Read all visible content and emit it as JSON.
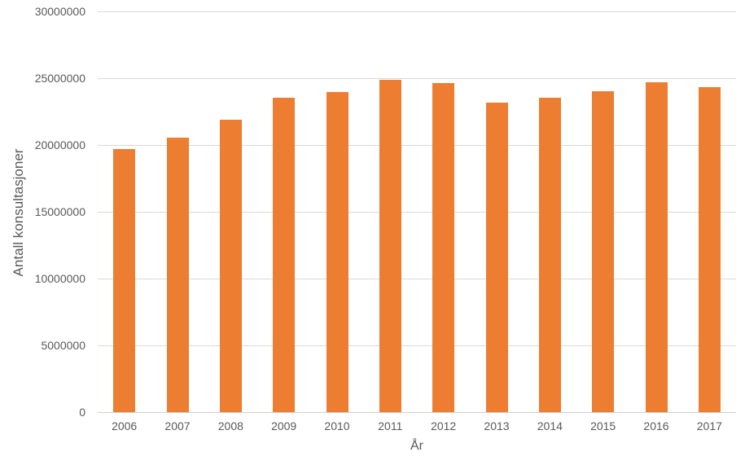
{
  "chart_data": {
    "type": "bar",
    "title": "",
    "xlabel": "År",
    "ylabel": "Antall konsultasjoner",
    "categories": [
      "2006",
      "2007",
      "2008",
      "2009",
      "2010",
      "2011",
      "2012",
      "2013",
      "2014",
      "2015",
      "2016",
      "2017"
    ],
    "values": [
      19700000,
      20550000,
      21900000,
      23550000,
      23950000,
      24900000,
      24650000,
      23200000,
      23550000,
      24050000,
      24700000,
      24300000
    ],
    "ylim": [
      0,
      30000000
    ],
    "ytick_step": 5000000,
    "ytick_labels": [
      "0",
      "5000000",
      "10000000",
      "15000000",
      "20000000",
      "25000000",
      "30000000"
    ],
    "grid": true,
    "legend": false,
    "bar_color": "#ed7d31",
    "gridline_color": "#d9d9d9",
    "text_color": "#595959"
  }
}
